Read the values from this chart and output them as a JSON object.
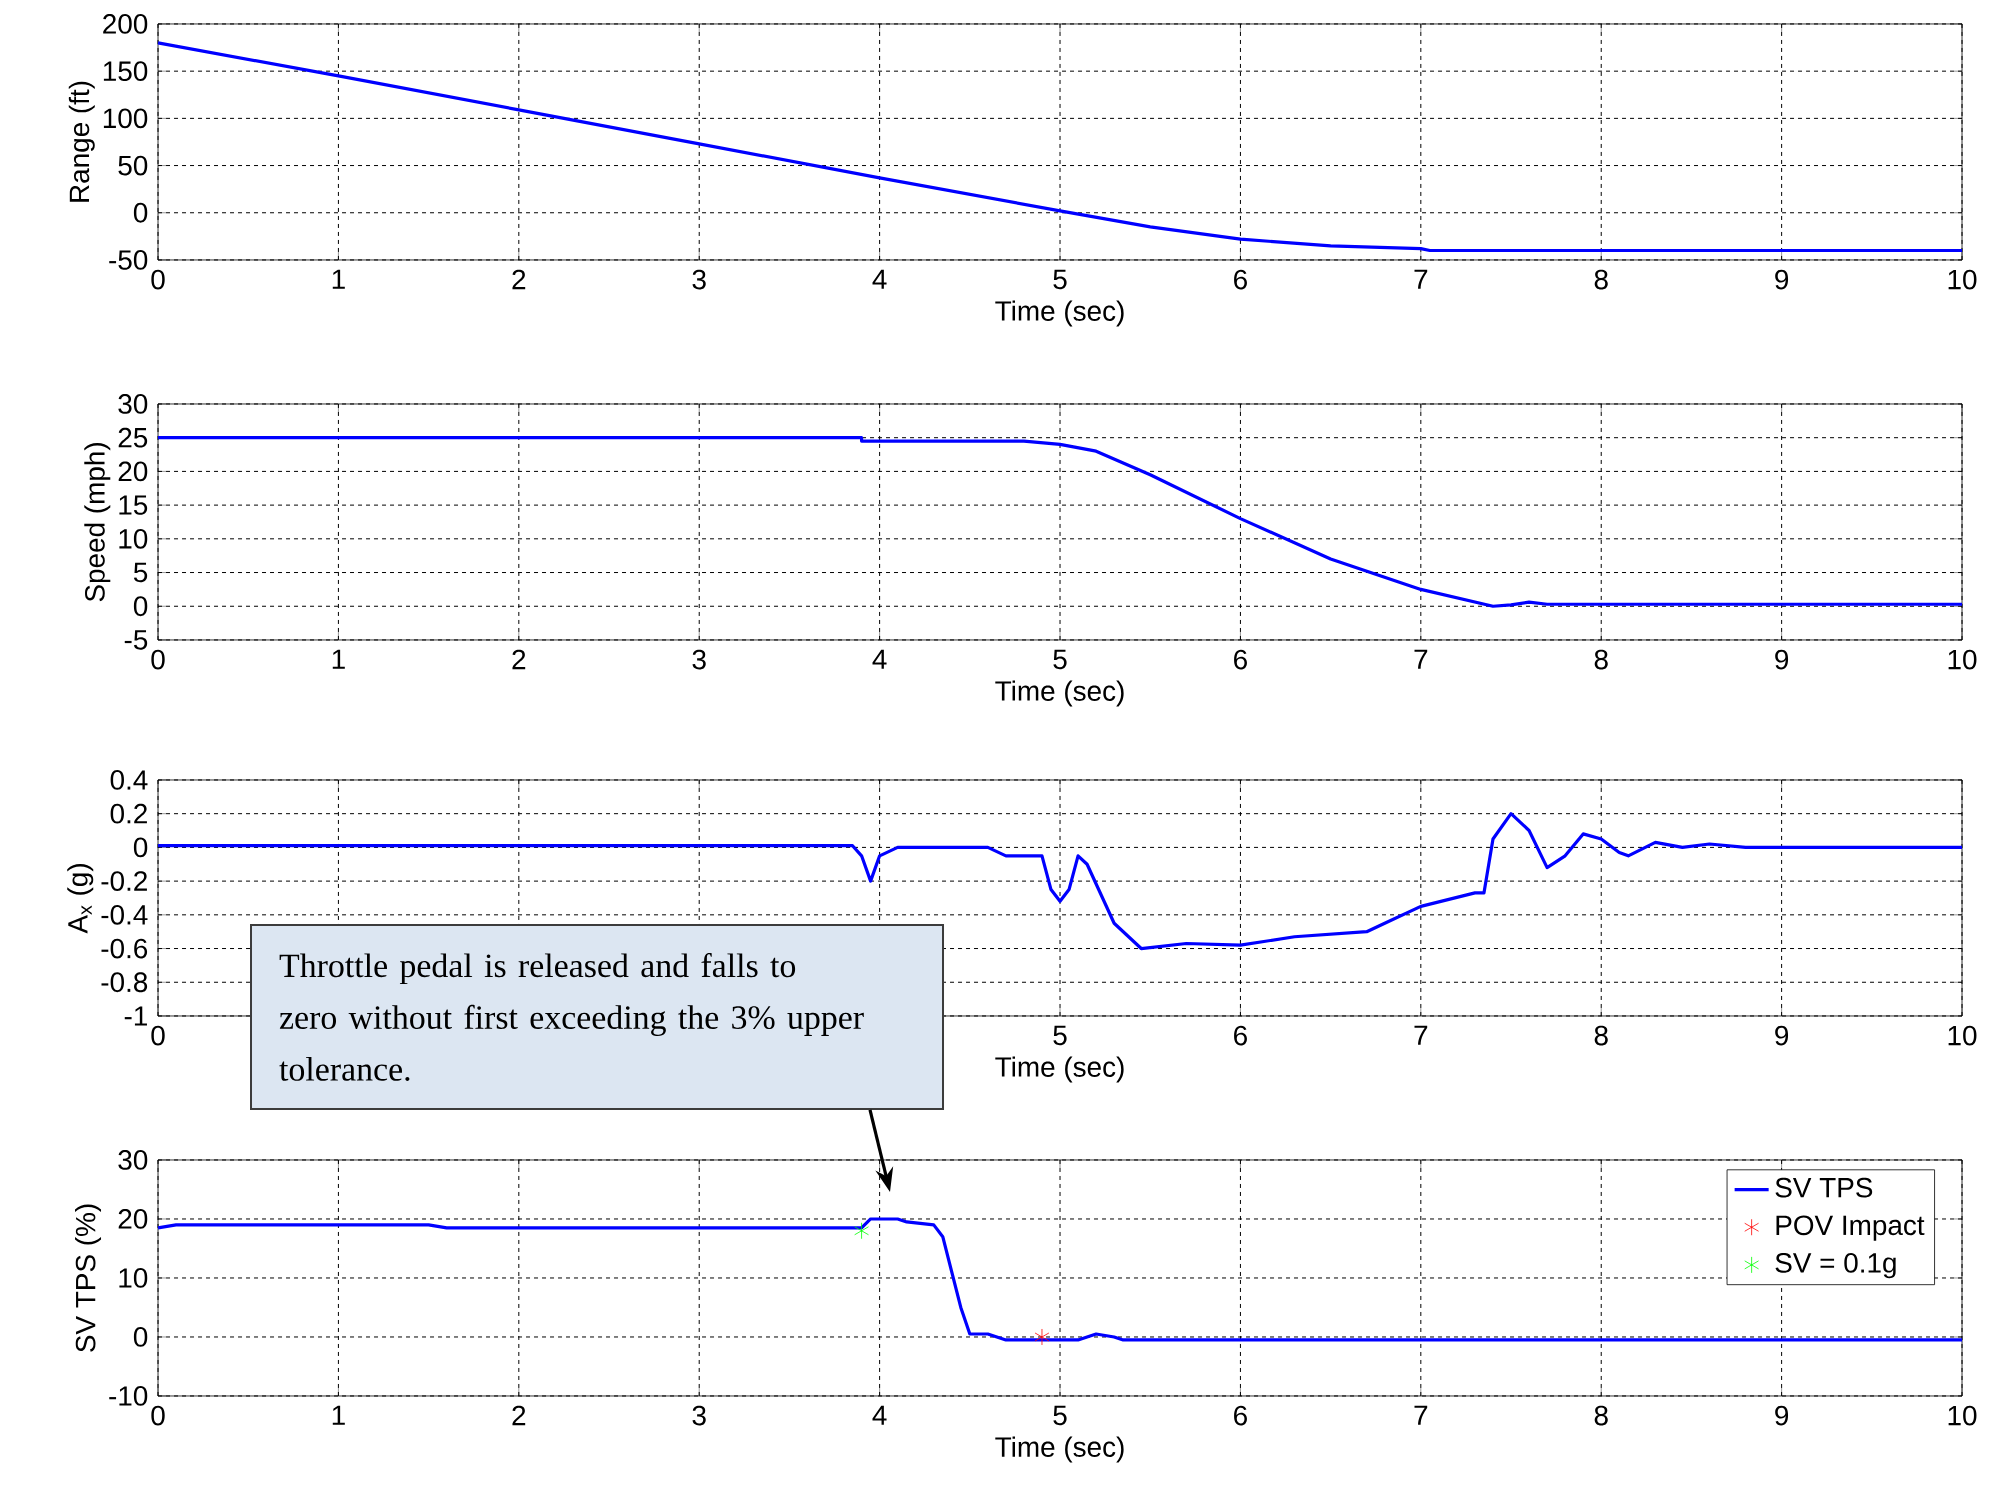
{
  "chart_data": [
    {
      "type": "line",
      "ylabel": "Range (ft)",
      "xlabel": "Time (sec)",
      "xlim": [
        0,
        10
      ],
      "xticks": [
        0,
        1,
        2,
        3,
        4,
        5,
        6,
        7,
        8,
        9,
        10
      ],
      "ylim": [
        -50,
        200
      ],
      "yticks": [
        -50,
        0,
        50,
        100,
        150,
        200
      ],
      "grid": true,
      "series": [
        {
          "color": "#0000ff",
          "x": [
            0,
            1,
            2,
            3,
            4,
            5,
            5.5,
            6,
            6.5,
            7,
            7.05,
            10
          ],
          "values": [
            180,
            145,
            109,
            73,
            37,
            2,
            -15,
            -28,
            -35,
            -38,
            -40,
            -40
          ]
        }
      ]
    },
    {
      "type": "line",
      "ylabel": "Speed (mph)",
      "xlabel": "Time (sec)",
      "xlim": [
        0,
        10
      ],
      "xticks": [
        0,
        1,
        2,
        3,
        4,
        5,
        6,
        7,
        8,
        9,
        10
      ],
      "ylim": [
        -5,
        30
      ],
      "yticks": [
        -5,
        0,
        5,
        10,
        15,
        20,
        25,
        30
      ],
      "grid": true,
      "series": [
        {
          "color": "#0000ff",
          "x": [
            0,
            3.9,
            3.9,
            4.8,
            5,
            5.2,
            5.5,
            6,
            6.5,
            7,
            7.4,
            7.5,
            7.6,
            7.7,
            10
          ],
          "values": [
            25,
            25,
            24.5,
            24.5,
            24,
            23,
            19.5,
            13,
            7,
            2.5,
            0,
            0.2,
            0.6,
            0.3,
            0.3
          ]
        }
      ]
    },
    {
      "type": "line",
      "ylabel": "A$_{x}$ (g)",
      "xlabel": "Time (sec)",
      "xlim": [
        0,
        10
      ],
      "xticks": [
        0,
        {
          "value": 1,
          "label": null
        },
        {
          "value": 2,
          "label": null
        },
        {
          "value": 3,
          "label": null
        },
        {
          "value": 4,
          "label": null
        },
        5,
        6,
        7,
        8,
        9,
        10
      ],
      "ylim": [
        -1,
        0.4
      ],
      "yticks": [
        -1,
        -0.8,
        -0.6,
        -0.4,
        -0.2,
        0,
        0.2,
        0.4
      ],
      "grid": true,
      "series": [
        {
          "color": "#0000ff",
          "x": [
            0,
            3.85,
            3.9,
            3.95,
            4.0,
            4.1,
            4.6,
            4.7,
            4.9,
            4.95,
            5.0,
            5.05,
            5.1,
            5.15,
            5.3,
            5.45,
            5.7,
            6.0,
            6.3,
            6.7,
            6.8,
            7.0,
            7.3,
            7.35,
            7.4,
            7.5,
            7.6,
            7.7,
            7.8,
            7.9,
            8.0,
            8.1,
            8.15,
            8.3,
            8.45,
            8.6,
            8.8,
            10
          ],
          "values": [
            0.01,
            0.01,
            -0.05,
            -0.2,
            -0.05,
            0,
            0,
            -0.05,
            -0.05,
            -0.25,
            -0.32,
            -0.25,
            -0.05,
            -0.1,
            -0.45,
            -0.6,
            -0.57,
            -0.58,
            -0.53,
            -0.5,
            -0.45,
            -0.35,
            -0.27,
            -0.27,
            0.05,
            0.2,
            0.1,
            -0.12,
            -0.05,
            0.08,
            0.05,
            -0.03,
            -0.05,
            0.03,
            0,
            0.02,
            0,
            0
          ]
        }
      ]
    },
    {
      "type": "line",
      "ylabel": "SV TPS (%)",
      "xlabel": "Time (sec)",
      "xlim": [
        0,
        10
      ],
      "xticks": [
        0,
        1,
        2,
        3,
        4,
        5,
        6,
        7,
        8,
        9,
        10
      ],
      "ylim": [
        -10,
        30
      ],
      "yticks": [
        -10,
        0,
        10,
        20,
        30
      ],
      "grid": true,
      "legend": "top right",
      "annotations": [
        "Throttle pedal is released and falls to zero without first exceeding the 3% upper tolerance."
      ],
      "series": [
        {
          "name": "SV TPS",
          "type": "line",
          "color": "#0000ff",
          "x": [
            0,
            0.1,
            1.5,
            1.6,
            3.9,
            3.95,
            4.1,
            4.15,
            4.3,
            4.35,
            4.45,
            4.5,
            4.6,
            4.7,
            5.1,
            5.2,
            5.3,
            5.35,
            10
          ],
          "values": [
            18.5,
            19,
            19,
            18.5,
            18.5,
            20,
            20,
            19.5,
            19,
            17,
            5,
            0.5,
            0.5,
            -0.5,
            -0.5,
            0.5,
            0,
            -0.5,
            -0.5
          ]
        },
        {
          "name": "POV Impact",
          "type": "scatter",
          "marker": "cross",
          "color": "#ff0000",
          "x": [
            4.9
          ],
          "values": [
            0
          ]
        },
        {
          "name": "SV = 0.1g",
          "type": "scatter",
          "marker": "cross",
          "color": "#00ff00",
          "x": [
            3.9
          ],
          "values": [
            18
          ]
        }
      ]
    }
  ]
}
